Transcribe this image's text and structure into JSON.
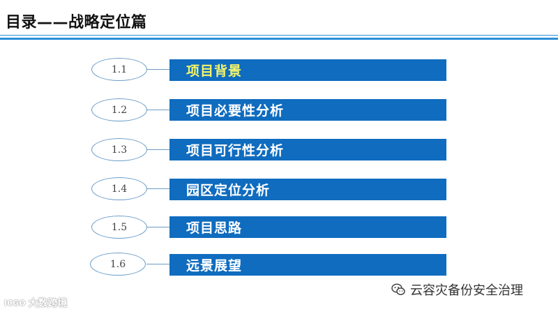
{
  "slide": {
    "title": "目录——战略定位篇"
  },
  "items": [
    {
      "number": "1.1",
      "label": "项目背景",
      "active": true
    },
    {
      "number": "1.2",
      "label": "项目必要性分析",
      "active": false
    },
    {
      "number": "1.3",
      "label": "项目可行性分析",
      "active": false
    },
    {
      "number": "1.4",
      "label": "园区定位分析",
      "active": false
    },
    {
      "number": "1.5",
      "label": "项目思路",
      "active": false
    },
    {
      "number": "1.6",
      "label": "远景展望",
      "active": false
    }
  ],
  "colors": {
    "bar": "#0f6cbf",
    "active_text": "#f5f56a",
    "rule": "#2a8fd8"
  },
  "watermark": {
    "text": "云容灾备份安全治理",
    "icon": "wechat-icon"
  },
  "brand": {
    "logo_text": "ICGO",
    "name": "大数跨境"
  }
}
